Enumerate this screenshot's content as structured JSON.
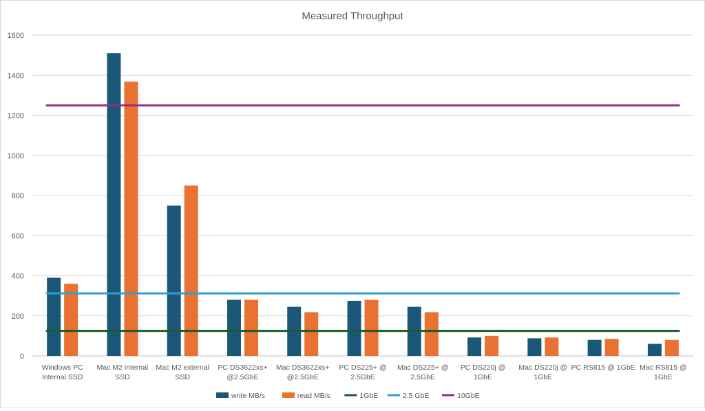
{
  "chart_data": {
    "type": "bar",
    "title": "Measured Throughput",
    "xlabel": "",
    "ylabel": "",
    "ylim": [
      0,
      1600
    ],
    "yticks": [
      0,
      200,
      400,
      600,
      800,
      1000,
      1200,
      1400,
      1600
    ],
    "grid": true,
    "legend_position": "bottom",
    "categories": [
      [
        "Windows PC",
        "Internal SSD"
      ],
      [
        "Mac M2 internal",
        "SSD"
      ],
      [
        "Mac M2 external",
        "SSD"
      ],
      [
        "PC DS3622xs+",
        "@2.5GbE"
      ],
      [
        "Mac DS3622xs+",
        "@2.5GbE"
      ],
      [
        "PC DS225+ @",
        "2.5GbE"
      ],
      [
        "Mac DS225+ @",
        "2.5GbE"
      ],
      [
        "PC DS220j @",
        "1GbE"
      ],
      [
        "Mac DS220j @",
        "1GbE"
      ],
      [
        "PC RS815 @ 1GbE"
      ],
      [
        "Mac RS815 @",
        "1GbE"
      ]
    ],
    "series": [
      {
        "name": "write MB/s",
        "kind": "bar",
        "color": "#1b5778",
        "values": [
          390,
          1510,
          750,
          280,
          245,
          275,
          245,
          92,
          88,
          80,
          60
        ]
      },
      {
        "name": "read MB/s",
        "kind": "bar",
        "color": "#e97132",
        "values": [
          360,
          1368,
          850,
          280,
          218,
          280,
          218,
          100,
          92,
          85,
          80
        ]
      },
      {
        "name": "1GbE",
        "kind": "line",
        "color": "#1e5c2a",
        "value": 125
      },
      {
        "name": "2.5 GbE",
        "kind": "line",
        "color": "#2f9fd0",
        "value": 312
      },
      {
        "name": "10GbE",
        "kind": "line",
        "color": "#962c8b",
        "value": 1250
      }
    ]
  }
}
